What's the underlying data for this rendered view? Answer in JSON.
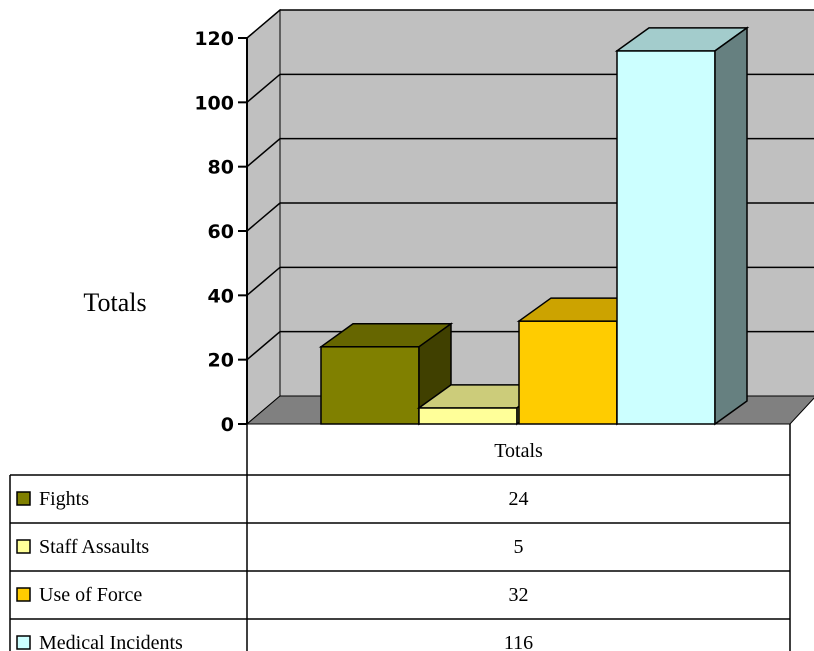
{
  "chart_data": {
    "type": "bar",
    "style": "3d-column-with-data-table",
    "ylabel": "Totals",
    "ylim": [
      0,
      120
    ],
    "yticks": [
      0,
      20,
      40,
      60,
      80,
      100,
      120
    ],
    "grid": true,
    "categories": [
      "Totals"
    ],
    "series": [
      {
        "name": "Fights",
        "values": [
          24
        ],
        "color": "#808000"
      },
      {
        "name": "Staff Assaults",
        "values": [
          5
        ],
        "color": "#FFFF99"
      },
      {
        "name": "Use of Force",
        "values": [
          32
        ],
        "color": "#FFCC00"
      },
      {
        "name": "Medical Incidents",
        "values": [
          116
        ],
        "color": "#CCFFFF"
      }
    ],
    "table": {
      "column_header": "Totals",
      "rows": [
        {
          "label": "Fights",
          "value": "24"
        },
        {
          "label": "Staff Assaults",
          "value": "5"
        },
        {
          "label": "Use of Force",
          "value": "32"
        },
        {
          "label": "Medical Incidents",
          "value": "116"
        }
      ]
    },
    "wall_color": "#C0C0C0",
    "floor_color": "#808080"
  }
}
